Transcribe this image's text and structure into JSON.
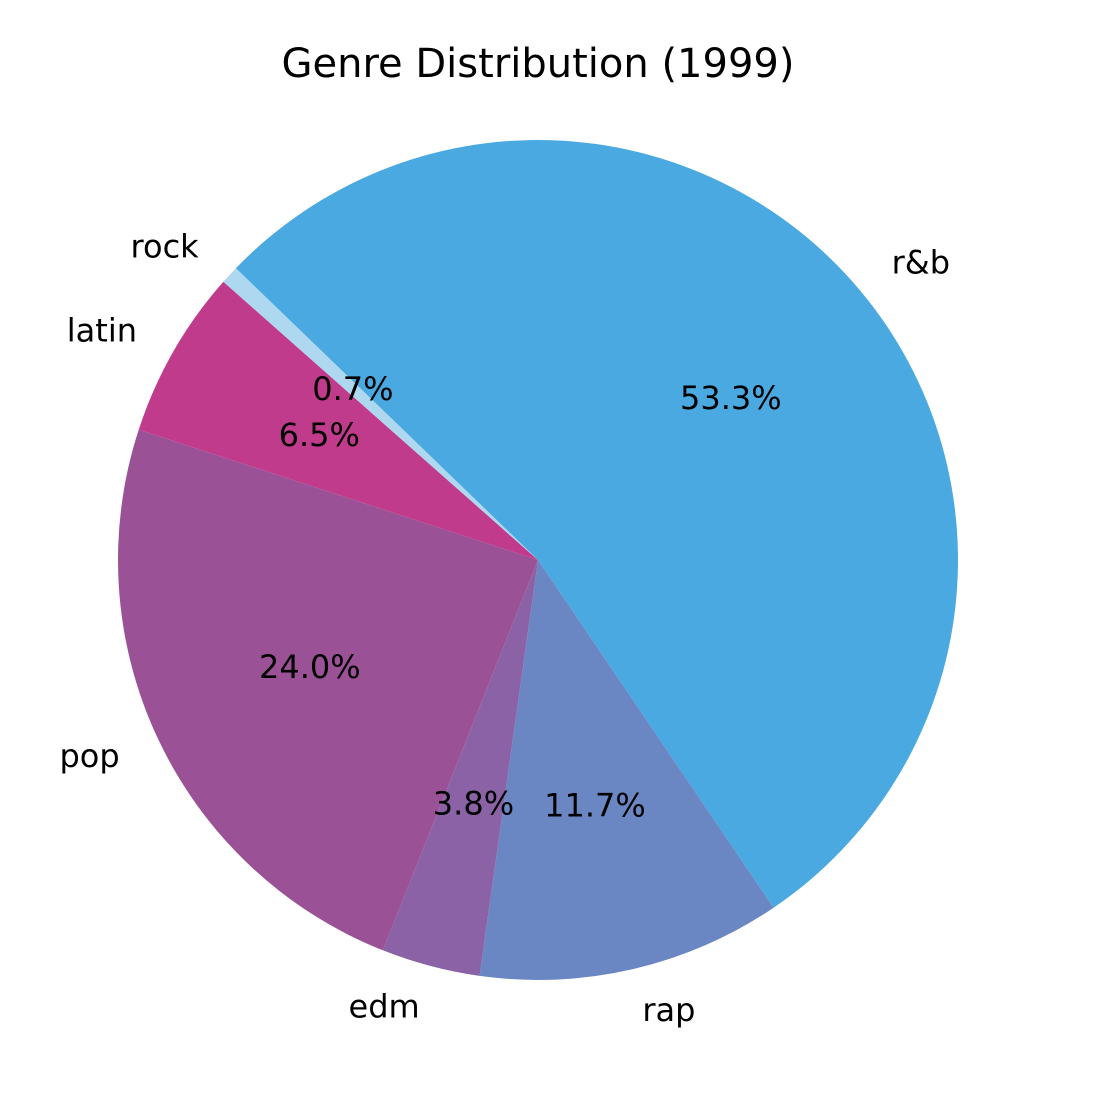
{
  "chart_data": {
    "type": "pie",
    "title": "Genre Distribution (1999)",
    "categories": [
      "r&b",
      "rap",
      "edm",
      "pop",
      "latin",
      "rock"
    ],
    "values": [
      53.3,
      11.7,
      3.8,
      24.0,
      6.5,
      0.7
    ],
    "percent_labels": [
      "53.3%",
      "11.7%",
      "3.8%",
      "24.0%",
      "6.5%",
      "0.7%"
    ],
    "colors": [
      "#4aa9e0",
      "#6a87c4",
      "#8a62a5",
      "#9b5196",
      "#c03b8c",
      "#add8ef"
    ],
    "start_angle_deg": 136,
    "direction": "clockwise"
  }
}
